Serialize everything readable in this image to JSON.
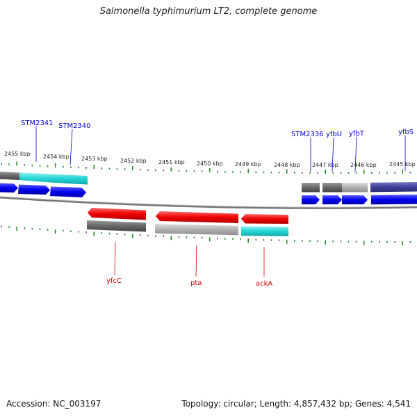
{
  "title": "Salmonella typhimurium LT2, complete genome",
  "footer": {
    "accession": "Accession: NC_003197",
    "summary": "Topology: circular; Length: 4,857,432 bp; Genes: 4,541"
  },
  "colors": {
    "blue": "#0000ee",
    "red": "#ee0000",
    "cyan": "#22d4d4",
    "dark_gray": "#666666",
    "light_gray": "#b0b0b0",
    "navy": "#3d3f9a",
    "tick_green": "#2a8a2a",
    "backbone": "#888888"
  },
  "scale_labels": [
    "2455 kbp",
    "2454 kbp",
    "2453 kbp",
    "2452 kbp",
    "2451 kbp",
    "2450 kbp",
    "2449 kbp",
    "2448 kbp",
    "2447 kbp",
    "2446 kbp",
    "2445 kbp"
  ],
  "top_genes": [
    "STM2341",
    "STM2340",
    "STM2336",
    "yfbU",
    "yfbT",
    "yfbS"
  ],
  "bottom_genes": [
    "yfcC",
    "pta",
    "ackA"
  ]
}
